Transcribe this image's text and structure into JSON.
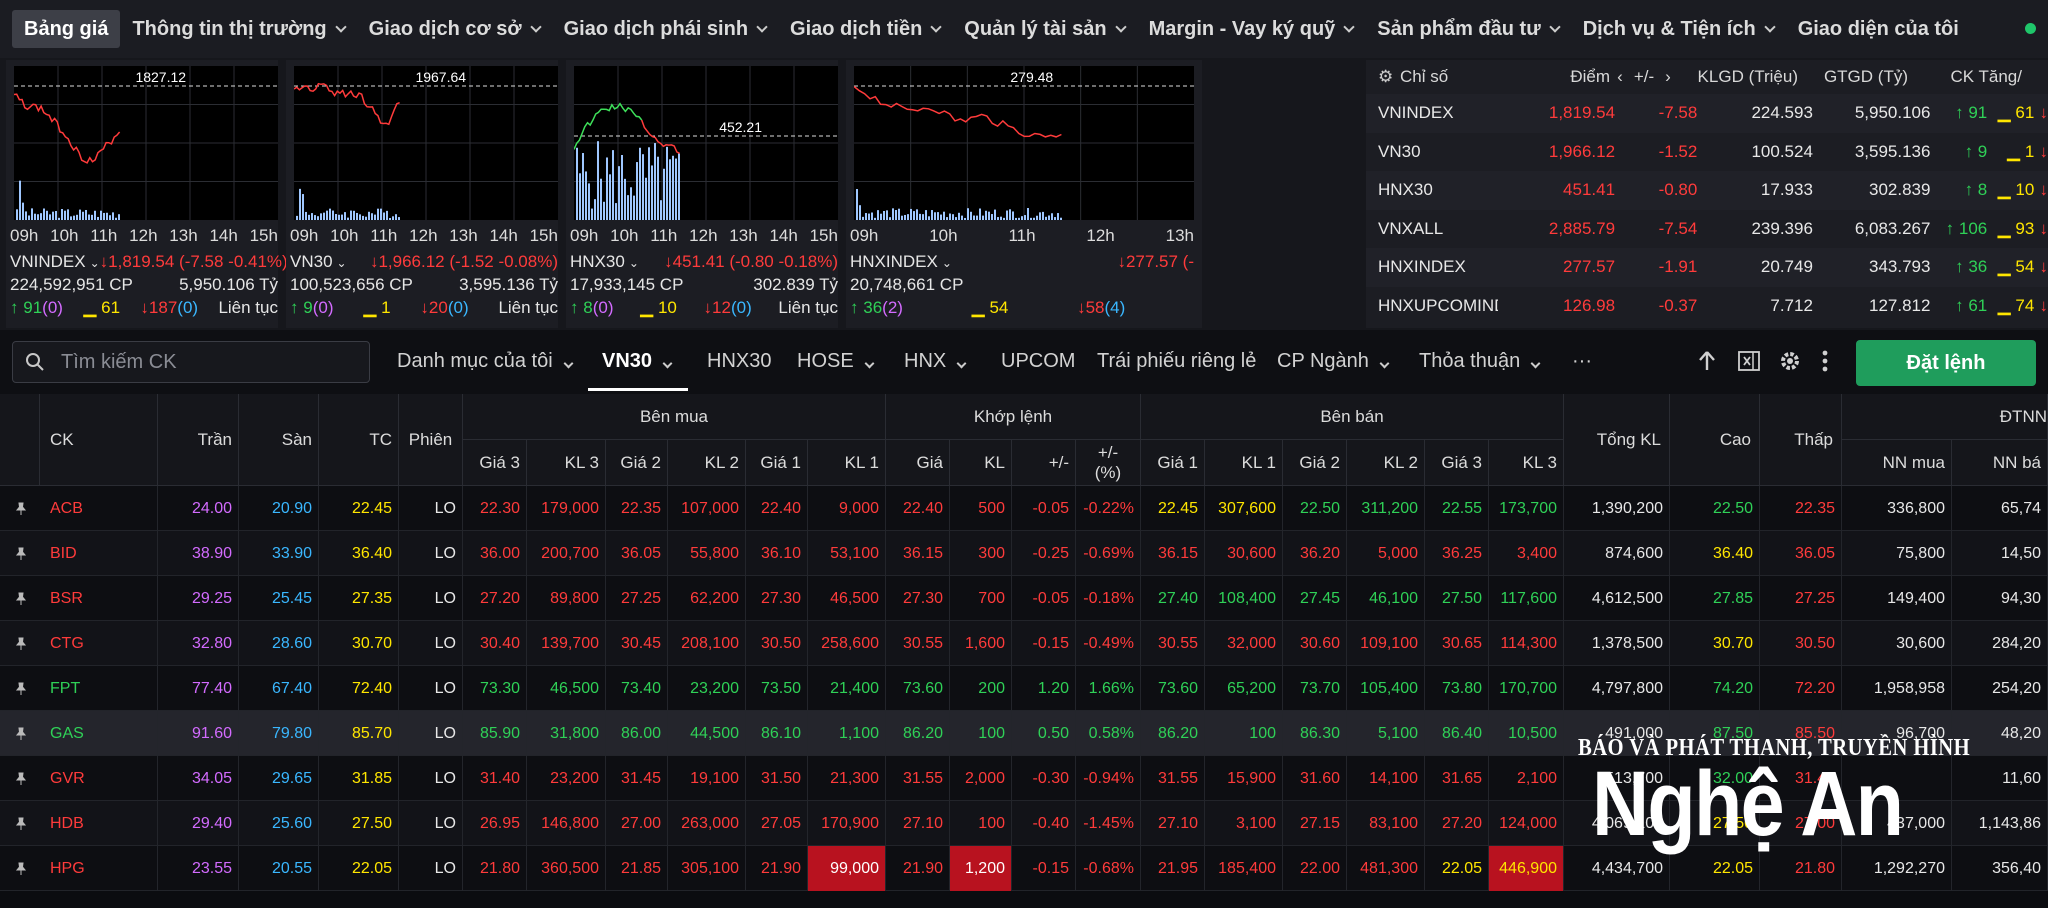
{
  "nav": {
    "items": [
      "Bảng giá",
      "Thông tin thị trường",
      "Giao dịch cơ sở",
      "Giao dịch phái sinh",
      "Giao dịch tiền",
      "Quản lý tài sản",
      "Margin - Vay ký quỹ",
      "Sản phẩm đầu tư",
      "Dịch vụ & Tiện ích",
      "Giao diện của tôi"
    ]
  },
  "mini_charts": [
    {
      "name": "VNINDEX",
      "ref": "1827.12",
      "times": [
        "09h",
        "10h",
        "11h",
        "12h",
        "13h",
        "14h",
        "15h"
      ],
      "change": "1,819.54 (-7.58 -0.41%)",
      "volume": "224,592,951 CP",
      "value": "5,950.106 Tỷ",
      "up": "91",
      "ceil": "(0)",
      "flat": "61",
      "down": "187",
      "floor": "(0)",
      "session": "Liên tục"
    },
    {
      "name": "VN30",
      "ref": "1967.64",
      "times": [
        "09h",
        "10h",
        "11h",
        "12h",
        "13h",
        "14h",
        "15h"
      ],
      "change": "1,966.12 (-1.52 -0.08%)",
      "volume": "100,523,656 CP",
      "value": "3,595.136 Tỷ",
      "up": "9",
      "ceil": "(0)",
      "flat": "1",
      "down": "20",
      "floor": "(0)",
      "session": "Liên tục"
    },
    {
      "name": "HNX30",
      "ref": "452.21",
      "times": [
        "09h",
        "10h",
        "11h",
        "12h",
        "13h",
        "14h",
        "15h"
      ],
      "change": "451.41 (-0.80 -0.18%)",
      "volume": "17,933,145 CP",
      "value": "302.839 Tỷ",
      "up": "8",
      "ceil": "(0)",
      "flat": "10",
      "down": "12",
      "floor": "(0)",
      "session": "Liên tục"
    },
    {
      "name": "HNXINDEX",
      "ref": "279.48",
      "times": [
        "09h",
        "10h",
        "11h",
        "12h",
        "13h"
      ],
      "change": "277.57 (-",
      "volume": "20,748,661 CP",
      "value": "",
      "up": "36",
      "ceil": "(2)",
      "flat": "54",
      "down": "58",
      "floor": "(4)",
      "session": ""
    }
  ],
  "index_table": {
    "headers": {
      "name": "Chỉ số",
      "points": "Điểm",
      "change": "+/-",
      "volume": "KLGD (Triệu)",
      "value": "GTGD (Tỷ)",
      "count": "CK Tăng/"
    },
    "rows": [
      {
        "name": "VNINDEX",
        "points": "1,819.54",
        "change": "-7.58",
        "volume": "224.593",
        "value": "5,950.106",
        "up": "91",
        "flat": "61"
      },
      {
        "name": "VN30",
        "points": "1,966.12",
        "change": "-1.52",
        "volume": "100.524",
        "value": "3,595.136",
        "up": "9",
        "flat": "1"
      },
      {
        "name": "HNX30",
        "points": "451.41",
        "change": "-0.80",
        "volume": "17.933",
        "value": "302.839",
        "up": "8",
        "flat": "10"
      },
      {
        "name": "VNXALL",
        "points": "2,885.79",
        "change": "-7.54",
        "volume": "239.396",
        "value": "6,083.267",
        "up": "106",
        "flat": "93"
      },
      {
        "name": "HNXINDEX",
        "points": "277.57",
        "change": "-1.91",
        "volume": "20.749",
        "value": "343.793",
        "up": "36",
        "flat": "54"
      },
      {
        "name": "HNXUPCOMINDEX",
        "points": "126.98",
        "change": "-0.37",
        "volume": "7.712",
        "value": "127.812",
        "up": "61",
        "flat": "74"
      }
    ]
  },
  "toolbar": {
    "search_placeholder": "Tìm kiếm CK",
    "tabs": [
      "Danh mục của tôi",
      "VN30",
      "HNX30",
      "HOSE",
      "HNX",
      "UPCOM",
      "Trái phiếu riêng lẻ",
      "CP Ngành",
      "Thỏa thuận"
    ],
    "more": "···",
    "order_button": "Đặt lệnh"
  },
  "table": {
    "headers": {
      "ck": "CK",
      "ceil": "Trần",
      "floor": "Sàn",
      "ref": "TC",
      "session": "Phiên",
      "buy": "Bên mua",
      "match": "Khớp lệnh",
      "sell": "Bên bán",
      "total": "Tổng KL",
      "high": "Cao",
      "low": "Thấp",
      "foreign": "ĐTNN",
      "buy_cols": [
        "Giá 3",
        "KL 3",
        "Giá 2",
        "KL 2",
        "Giá 1",
        "KL 1"
      ],
      "match_cols": [
        "Giá",
        "KL",
        "+/-",
        "+/- (%)"
      ],
      "sell_cols": [
        "Giá 1",
        "KL 1",
        "Giá 2",
        "KL 2",
        "Giá 3",
        "KL 3"
      ],
      "foreign_cols": [
        "NN mua",
        "NN bá"
      ]
    },
    "rows": [
      {
        "ck": "ACB",
        "c": "24.00",
        "f": "20.90",
        "r": "22.45",
        "s": "LO",
        "b3": "22.30",
        "bv3": "179,000",
        "b2": "22.35",
        "bv2": "107,000",
        "b1": "22.40",
        "bv1": "9,000",
        "mp": "22.40",
        "mv": "500",
        "ch": "-0.05",
        "pct": "-0.22%",
        "s1": "22.45",
        "sv1": "307,600",
        "s2": "22.50",
        "sv2": "311,200",
        "s3": "22.55",
        "sv3": "173,700",
        "tot": "1,390,200",
        "hi": "22.50",
        "lo": "22.35",
        "nnb": "336,800",
        "nns": "65,74"
      },
      {
        "ck": "BID",
        "c": "38.90",
        "f": "33.90",
        "r": "36.40",
        "s": "LO",
        "b3": "36.00",
        "bv3": "200,700",
        "b2": "36.05",
        "bv2": "55,800",
        "b1": "36.10",
        "bv1": "53,100",
        "mp": "36.15",
        "mv": "300",
        "ch": "-0.25",
        "pct": "-0.69%",
        "s1": "36.15",
        "sv1": "30,600",
        "s2": "36.20",
        "sv2": "5,000",
        "s3": "36.25",
        "sv3": "3,400",
        "tot": "874,600",
        "hi": "36.40",
        "lo": "36.05",
        "nnb": "75,800",
        "nns": "14,50"
      },
      {
        "ck": "BSR",
        "c": "29.25",
        "f": "25.45",
        "r": "27.35",
        "s": "LO",
        "b3": "27.20",
        "bv3": "89,800",
        "b2": "27.25",
        "bv2": "62,200",
        "b1": "27.30",
        "bv1": "46,500",
        "mp": "27.30",
        "mv": "700",
        "ch": "-0.05",
        "pct": "-0.18%",
        "s1": "27.40",
        "sv1": "108,400",
        "s2": "27.45",
        "sv2": "46,100",
        "s3": "27.50",
        "sv3": "117,600",
        "tot": "4,612,500",
        "hi": "27.85",
        "lo": "27.25",
        "nnb": "149,400",
        "nns": "94,30"
      },
      {
        "ck": "CTG",
        "c": "32.80",
        "f": "28.60",
        "r": "30.70",
        "s": "LO",
        "b3": "30.40",
        "bv3": "139,700",
        "b2": "30.45",
        "bv2": "208,100",
        "b1": "30.50",
        "bv1": "258,600",
        "mp": "30.55",
        "mv": "1,600",
        "ch": "-0.15",
        "pct": "-0.49%",
        "s1": "30.55",
        "sv1": "32,000",
        "s2": "30.60",
        "sv2": "109,100",
        "s3": "30.65",
        "sv3": "114,300",
        "tot": "1,378,500",
        "hi": "30.70",
        "lo": "30.50",
        "nnb": "30,600",
        "nns": "284,20"
      },
      {
        "ck": "FPT",
        "c": "77.40",
        "f": "67.40",
        "r": "72.40",
        "s": "LO",
        "b3": "73.30",
        "bv3": "46,500",
        "b2": "73.40",
        "bv2": "23,200",
        "b1": "73.50",
        "bv1": "21,400",
        "mp": "73.60",
        "mv": "200",
        "ch": "1.20",
        "pct": "1.66%",
        "s1": "73.60",
        "sv1": "65,200",
        "s2": "73.70",
        "sv2": "105,400",
        "s3": "73.80",
        "sv3": "170,700",
        "tot": "4,797,800",
        "hi": "74.20",
        "lo": "72.20",
        "nnb": "1,958,958",
        "nns": "254,20"
      },
      {
        "ck": "GAS",
        "c": "91.60",
        "f": "79.80",
        "r": "85.70",
        "s": "LO",
        "b3": "85.90",
        "bv3": "31,800",
        "b2": "86.00",
        "bv2": "44,500",
        "b1": "86.10",
        "bv1": "1,100",
        "mp": "86.20",
        "mv": "100",
        "ch": "0.50",
        "pct": "0.58%",
        "s1": "86.20",
        "sv1": "100",
        "s2": "86.30",
        "sv2": "5,100",
        "s3": "86.40",
        "sv3": "10,500",
        "tot": "491,000",
        "hi": "87.50",
        "lo": "85.50",
        "nnb": "96,700",
        "nns": "48,20"
      },
      {
        "ck": "GVR",
        "c": "34.05",
        "f": "29.65",
        "r": "31.85",
        "s": "LO",
        "b3": "31.40",
        "bv3": "23,200",
        "b2": "31.45",
        "bv2": "19,100",
        "b1": "31.50",
        "bv1": "21,300",
        "mp": "31.55",
        "mv": "2,000",
        "ch": "-0.30",
        "pct": "-0.94%",
        "s1": "31.55",
        "sv1": "15,900",
        "s2": "31.60",
        "sv2": "14,100",
        "s3": "31.65",
        "sv3": "2,100",
        "tot": "513,700",
        "hi": "32.00",
        "lo": "31.45",
        "nnb": "",
        "nns": "11,60"
      },
      {
        "ck": "HDB",
        "c": "29.40",
        "f": "25.60",
        "r": "27.50",
        "s": "LO",
        "b3": "26.95",
        "bv3": "146,800",
        "b2": "27.00",
        "bv2": "263,000",
        "b1": "27.05",
        "bv1": "170,900",
        "mp": "27.10",
        "mv": "100",
        "ch": "-0.40",
        "pct": "-1.45%",
        "s1": "27.10",
        "sv1": "3,100",
        "s2": "27.15",
        "sv2": "83,100",
        "s3": "27.20",
        "sv3": "124,000",
        "tot": "4,069,100",
        "hi": "27.50",
        "lo": "27.00",
        "nnb": "437,000",
        "nns": "1,143,86"
      },
      {
        "ck": "HPG",
        "c": "23.55",
        "f": "20.55",
        "r": "22.05",
        "s": "LO",
        "b3": "21.80",
        "bv3": "360,500",
        "b2": "21.85",
        "bv2": "305,100",
        "b1": "21.90",
        "bv1": "99,000",
        "mp": "21.90",
        "mv": "1,200",
        "ch": "-0.15",
        "pct": "-0.68%",
        "s1": "21.95",
        "sv1": "185,400",
        "s2": "22.00",
        "sv2": "481,300",
        "s3": "22.05",
        "sv3": "446,900",
        "tot": "4,434,700",
        "hi": "22.05",
        "lo": "21.80",
        "nnb": "1,292,270",
        "nns": "356,40"
      }
    ]
  },
  "watermark": {
    "line1": "BÁO VÀ PHÁT THANH, TRUYỀN HÌNH",
    "line2": "Nghệ An"
  },
  "colors": {
    "up": "#2fd157",
    "down": "#ff3b3b",
    "ref": "#ffe600",
    "ceil": "#d36bff",
    "floor": "#3ab7ff",
    "accent": "#1f9d5c"
  }
}
